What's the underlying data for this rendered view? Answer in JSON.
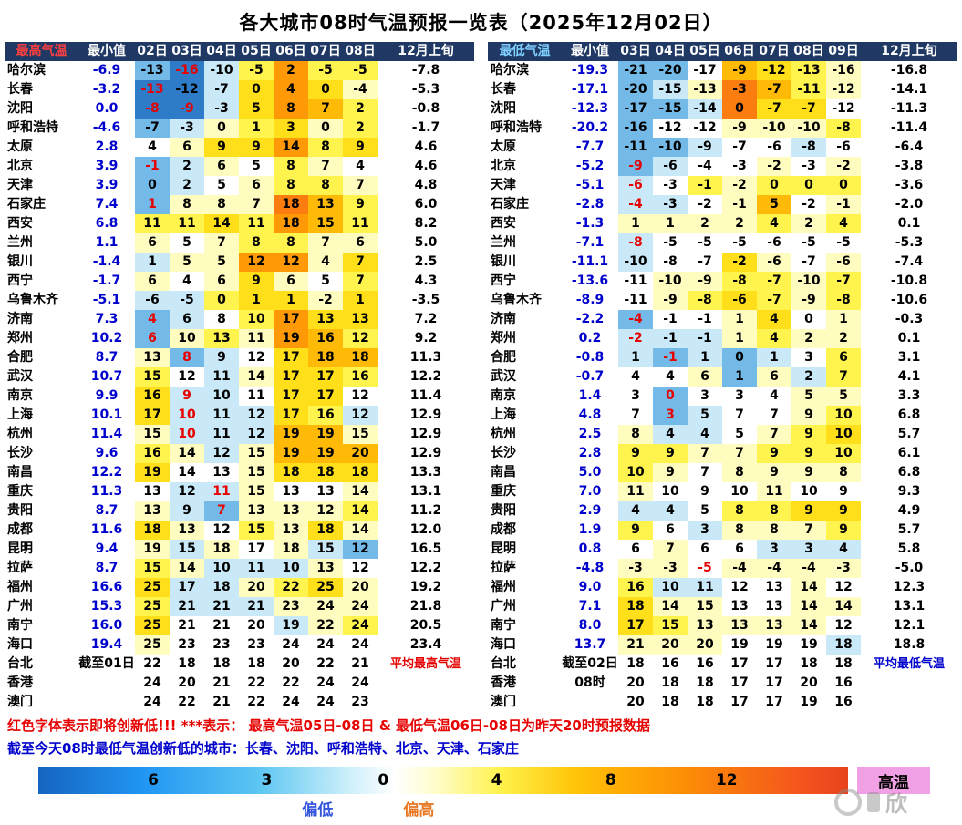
{
  "title": "各大城市08时气温预报一览表（2025年12月02日）",
  "chart_data": [
    {
      "type": "heatmap",
      "title": "最高气温",
      "min_col_label": "最小值",
      "day_columns": [
        "02日",
        "03日",
        "04日",
        "05日",
        "06日",
        "07日",
        "08日"
      ],
      "period_label": "12月上旬",
      "rows": [
        {
          "city": "哈尔滨",
          "min": "-6.9",
          "values": [
            -13,
            -16,
            -10,
            -5,
            2,
            -5,
            -5
          ],
          "avg": "-7.8",
          "red": [
            1
          ]
        },
        {
          "city": "长春",
          "min": "-3.2",
          "values": [
            -13,
            -12,
            -7,
            0,
            4,
            0,
            -4
          ],
          "avg": "-5.3",
          "red": [
            0
          ]
        },
        {
          "city": "沈阳",
          "min": "0.0",
          "values": [
            -8,
            -9,
            -3,
            5,
            8,
            7,
            2
          ],
          "avg": "-0.8",
          "red": [
            0,
            1
          ]
        },
        {
          "city": "呼和浩特",
          "min": "-4.6",
          "values": [
            -7,
            -3,
            0,
            1,
            3,
            0,
            2
          ],
          "avg": "-1.7"
        },
        {
          "city": "太原",
          "min": "2.8",
          "values": [
            4,
            6,
            9,
            9,
            14,
            8,
            9
          ],
          "avg": "4.6"
        },
        {
          "city": "北京",
          "min": "3.9",
          "values": [
            -1,
            2,
            6,
            5,
            8,
            7,
            4
          ],
          "avg": "4.6",
          "red": [
            0
          ]
        },
        {
          "city": "天津",
          "min": "3.9",
          "values": [
            0,
            2,
            5,
            6,
            8,
            8,
            7
          ],
          "avg": "4.8"
        },
        {
          "city": "石家庄",
          "min": "7.4",
          "values": [
            1,
            8,
            8,
            7,
            18,
            13,
            9
          ],
          "avg": "6.0",
          "red": [
            0
          ]
        },
        {
          "city": "西安",
          "min": "6.8",
          "values": [
            11,
            11,
            14,
            11,
            18,
            15,
            11
          ],
          "avg": "8.2"
        },
        {
          "city": "兰州",
          "min": "1.1",
          "values": [
            6,
            5,
            7,
            8,
            8,
            7,
            6
          ],
          "avg": "5.0"
        },
        {
          "city": "银川",
          "min": "-1.4",
          "values": [
            1,
            5,
            5,
            12,
            12,
            4,
            7
          ],
          "avg": "2.5"
        },
        {
          "city": "西宁",
          "min": "-1.7",
          "values": [
            6,
            4,
            6,
            9,
            6,
            5,
            7
          ],
          "avg": "4.3"
        },
        {
          "city": "乌鲁木齐",
          "min": "-5.1",
          "values": [
            -6,
            -5,
            0,
            1,
            1,
            -2,
            1
          ],
          "avg": "-3.5"
        },
        {
          "city": "济南",
          "min": "7.3",
          "values": [
            4,
            6,
            8,
            10,
            17,
            13,
            13
          ],
          "avg": "7.2",
          "red": [
            0
          ]
        },
        {
          "city": "郑州",
          "min": "10.2",
          "values": [
            6,
            10,
            13,
            11,
            19,
            16,
            12
          ],
          "avg": "9.2",
          "red": [
            0
          ]
        },
        {
          "city": "合肥",
          "min": "8.7",
          "values": [
            13,
            8,
            9,
            12,
            17,
            18,
            18
          ],
          "avg": "11.3",
          "red": [
            1
          ]
        },
        {
          "city": "武汉",
          "min": "10.7",
          "values": [
            15,
            12,
            11,
            14,
            17,
            17,
            16
          ],
          "avg": "12.2"
        },
        {
          "city": "南京",
          "min": "9.9",
          "values": [
            16,
            9,
            10,
            11,
            17,
            17,
            12
          ],
          "avg": "11.4",
          "red": [
            1
          ]
        },
        {
          "city": "上海",
          "min": "10.1",
          "values": [
            17,
            10,
            11,
            12,
            17,
            16,
            12
          ],
          "avg": "12.9",
          "red": [
            1
          ]
        },
        {
          "city": "杭州",
          "min": "11.4",
          "values": [
            15,
            10,
            11,
            12,
            19,
            19,
            15
          ],
          "avg": "12.9",
          "red": [
            1
          ]
        },
        {
          "city": "长沙",
          "min": "9.6",
          "values": [
            16,
            14,
            12,
            15,
            19,
            19,
            20
          ],
          "avg": "12.9"
        },
        {
          "city": "南昌",
          "min": "12.2",
          "values": [
            19,
            14,
            13,
            15,
            18,
            18,
            18
          ],
          "avg": "13.3"
        },
        {
          "city": "重庆",
          "min": "11.3",
          "values": [
            13,
            12,
            11,
            15,
            13,
            13,
            14
          ],
          "avg": "13.1",
          "red": [
            2
          ]
        },
        {
          "city": "贵阳",
          "min": "8.7",
          "values": [
            13,
            9,
            7,
            13,
            13,
            12,
            14
          ],
          "avg": "11.2",
          "red": [
            2
          ]
        },
        {
          "city": "成都",
          "min": "11.6",
          "values": [
            18,
            13,
            12,
            15,
            13,
            18,
            14
          ],
          "avg": "12.0"
        },
        {
          "city": "昆明",
          "min": "9.4",
          "values": [
            19,
            15,
            18,
            17,
            18,
            15,
            12
          ],
          "avg": "16.5"
        },
        {
          "city": "拉萨",
          "min": "8.7",
          "values": [
            15,
            14,
            10,
            11,
            10,
            13,
            12
          ],
          "avg": "12.2"
        },
        {
          "city": "福州",
          "min": "16.6",
          "values": [
            25,
            17,
            18,
            20,
            22,
            25,
            20
          ],
          "avg": "19.2"
        },
        {
          "city": "广州",
          "min": "15.3",
          "values": [
            25,
            21,
            21,
            21,
            23,
            24,
            24
          ],
          "avg": "21.8"
        },
        {
          "city": "南宁",
          "min": "16.0",
          "values": [
            25,
            21,
            21,
            20,
            19,
            22,
            24
          ],
          "avg": "20.5"
        },
        {
          "city": "海口",
          "min": "19.4",
          "values": [
            25,
            23,
            23,
            23,
            24,
            24,
            24
          ],
          "avg": "23.4"
        },
        {
          "city": "台北",
          "min": "截至01日",
          "values": [
            22,
            18,
            18,
            18,
            20,
            22,
            21
          ],
          "avg": "平均最高气温",
          "avg_color": "red"
        },
        {
          "city": "香港",
          "min": "",
          "values": [
            24,
            20,
            21,
            22,
            22,
            24,
            24
          ],
          "avg": ""
        },
        {
          "city": "澳门",
          "min": "",
          "values": [
            24,
            22,
            21,
            22,
            24,
            24,
            23
          ],
          "avg": ""
        }
      ]
    },
    {
      "type": "heatmap",
      "title": "最低气温",
      "min_col_label": "最小值",
      "day_columns": [
        "03日",
        "04日",
        "05日",
        "06日",
        "07日",
        "08日",
        "09日"
      ],
      "period_label": "12月上旬",
      "rows": [
        {
          "city": "哈尔滨",
          "min": "-19.3",
          "values": [
            -21,
            -20,
            -17,
            -9,
            -12,
            -13,
            -16
          ],
          "avg": "-16.8"
        },
        {
          "city": "长春",
          "min": "-17.1",
          "values": [
            -20,
            -15,
            -13,
            -3,
            -7,
            -11,
            -12
          ],
          "avg": "-14.1"
        },
        {
          "city": "沈阳",
          "min": "-12.3",
          "values": [
            -17,
            -15,
            -14,
            0,
            -7,
            -7,
            -12
          ],
          "avg": "-11.3"
        },
        {
          "city": "呼和浩特",
          "min": "-20.2",
          "values": [
            -16,
            -12,
            -12,
            -9,
            -10,
            -10,
            -8
          ],
          "avg": "-11.4"
        },
        {
          "city": "太原",
          "min": "-7.7",
          "values": [
            -11,
            -10,
            -9,
            -7,
            -6,
            -8,
            -6
          ],
          "avg": "-6.4"
        },
        {
          "city": "北京",
          "min": "-5.2",
          "values": [
            -9,
            -6,
            -4,
            -3,
            -2,
            -3,
            -2
          ],
          "avg": "-3.8",
          "red": [
            0
          ]
        },
        {
          "city": "天津",
          "min": "-5.1",
          "values": [
            -6,
            -3,
            -1,
            -2,
            0,
            0,
            0
          ],
          "avg": "-3.6",
          "red": [
            0
          ]
        },
        {
          "city": "石家庄",
          "min": "-2.8",
          "values": [
            -4,
            -3,
            -2,
            -1,
            5,
            -2,
            -1
          ],
          "avg": "-2.0",
          "red": [
            0
          ]
        },
        {
          "city": "西安",
          "min": "-1.3",
          "values": [
            1,
            1,
            2,
            2,
            4,
            2,
            4
          ],
          "avg": "0.1"
        },
        {
          "city": "兰州",
          "min": "-7.1",
          "values": [
            -8,
            -5,
            -5,
            -5,
            -6,
            -5,
            -5
          ],
          "avg": "-5.3",
          "red": [
            0
          ]
        },
        {
          "city": "银川",
          "min": "-11.1",
          "values": [
            -10,
            -8,
            -7,
            -2,
            -6,
            -7,
            -6
          ],
          "avg": "-7.4"
        },
        {
          "city": "西宁",
          "min": "-13.6",
          "values": [
            -11,
            -10,
            -9,
            -8,
            -7,
            -10,
            -7
          ],
          "avg": "-10.8"
        },
        {
          "city": "乌鲁木齐",
          "min": "-8.9",
          "values": [
            -11,
            -9,
            -8,
            -6,
            -7,
            -9,
            -8
          ],
          "avg": "-10.6"
        },
        {
          "city": "济南",
          "min": "-2.2",
          "values": [
            -4,
            -1,
            -1,
            1,
            4,
            0,
            1
          ],
          "avg": "-0.3",
          "red": [
            0
          ]
        },
        {
          "city": "郑州",
          "min": "0.2",
          "values": [
            -2,
            -1,
            -1,
            1,
            4,
            2,
            2
          ],
          "avg": "0.1",
          "red": [
            0
          ]
        },
        {
          "city": "合肥",
          "min": "-0.8",
          "values": [
            1,
            -1,
            1,
            0,
            1,
            3,
            6
          ],
          "avg": "3.1",
          "red": [
            1
          ]
        },
        {
          "city": "武汉",
          "min": "-0.7",
          "values": [
            4,
            4,
            6,
            1,
            6,
            2,
            7
          ],
          "avg": "4.1"
        },
        {
          "city": "南京",
          "min": "1.4",
          "values": [
            3,
            0,
            3,
            3,
            4,
            5,
            5
          ],
          "avg": "3.3",
          "red": [
            1
          ]
        },
        {
          "city": "上海",
          "min": "4.8",
          "values": [
            7,
            3,
            5,
            7,
            7,
            9,
            10
          ],
          "avg": "6.8",
          "red": [
            1
          ]
        },
        {
          "city": "杭州",
          "min": "2.5",
          "values": [
            8,
            4,
            4,
            5,
            7,
            9,
            10
          ],
          "avg": "5.7"
        },
        {
          "city": "长沙",
          "min": "2.8",
          "values": [
            9,
            9,
            7,
            7,
            9,
            9,
            10
          ],
          "avg": "6.1"
        },
        {
          "city": "南昌",
          "min": "5.0",
          "values": [
            10,
            9,
            7,
            8,
            9,
            9,
            8
          ],
          "avg": "6.8"
        },
        {
          "city": "重庆",
          "min": "7.0",
          "values": [
            11,
            10,
            9,
            10,
            11,
            10,
            9
          ],
          "avg": "9.3"
        },
        {
          "city": "贵阳",
          "min": "2.9",
          "values": [
            4,
            4,
            5,
            8,
            8,
            9,
            9
          ],
          "avg": "4.9"
        },
        {
          "city": "成都",
          "min": "1.9",
          "values": [
            9,
            6,
            3,
            8,
            8,
            7,
            9
          ],
          "avg": "5.7"
        },
        {
          "city": "昆明",
          "min": "0.8",
          "values": [
            6,
            7,
            6,
            6,
            3,
            3,
            4
          ],
          "avg": "5.8"
        },
        {
          "city": "拉萨",
          "min": "-4.8",
          "values": [
            -3,
            -3,
            -5,
            -4,
            -4,
            -4,
            -3
          ],
          "avg": "-5.0",
          "red": [
            2
          ]
        },
        {
          "city": "福州",
          "min": "9.0",
          "values": [
            16,
            10,
            11,
            12,
            13,
            14,
            12
          ],
          "avg": "12.3"
        },
        {
          "city": "广州",
          "min": "7.1",
          "values": [
            18,
            14,
            15,
            13,
            13,
            14,
            14
          ],
          "avg": "13.1"
        },
        {
          "city": "南宁",
          "min": "8.0",
          "values": [
            17,
            15,
            13,
            13,
            13,
            14,
            12
          ],
          "avg": "12.1"
        },
        {
          "city": "海口",
          "min": "13.7",
          "values": [
            21,
            20,
            20,
            19,
            19,
            19,
            18
          ],
          "avg": "18.8"
        },
        {
          "city": "台北",
          "min": "截至02日",
          "values": [
            18,
            16,
            16,
            17,
            17,
            18,
            18
          ],
          "avg": "平均最低气温",
          "avg_color": "blue"
        },
        {
          "city": "香港",
          "min": "08时",
          "values": [
            20,
            18,
            18,
            17,
            17,
            20,
            16
          ],
          "avg": ""
        },
        {
          "city": "澳门",
          "min": "",
          "values": [
            20,
            18,
            18,
            17,
            17,
            19,
            16
          ],
          "avg": ""
        }
      ]
    }
  ],
  "notes": {
    "red": "红色字体表示即将创新低!!!  ***表示：  最高气温05日-08日 & 最低气温06日-08日为昨天20时预报数据",
    "blue": "截至今天08时最低气温创新低的城市：长春、沈阳、呼和浩特、北京、天津、石家庄"
  },
  "legend": {
    "ticks": [
      {
        "label": "6",
        "pos": 14.2
      },
      {
        "label": "3",
        "pos": 28.2
      },
      {
        "label": "0",
        "pos": 42.6
      },
      {
        "label": "4",
        "pos": 56.6
      },
      {
        "label": "8",
        "pos": 70.7
      },
      {
        "label": "12",
        "pos": 85
      }
    ],
    "low_label": "偏低",
    "high_label": "偏高",
    "hot_label": "高温"
  },
  "watermark": "欣",
  "colors": {
    "header_bg": "#1F3864",
    "max_temp_label": "#FF4040",
    "min_temp_label": "#7ED0FF",
    "min_col_text": "#0000CC",
    "record_red": "#E60000",
    "note_blue": "#0000CC",
    "legend_low": "#3355DD",
    "legend_high": "#E87722",
    "hot_bg": "#F2A0E6",
    "gradient": "linear-gradient(to right,#1565C0 0%,#2196F3 13%,#5BC5F2 27%,#C9EEFA 38%,#FFFFFF 44%,#FFFDCC 49%,#FFF24D 57%,#FFC60A 66%,#FFAF05 71%,#FC8D06 80%,#F4511E 95%,#E8431C 100%)",
    "anomaly_palette": [
      {
        "max": -6,
        "color": "#2E7CC8"
      },
      {
        "max": -3,
        "color": "#74BAE8"
      },
      {
        "max": -0.8,
        "color": "#C9E9F8"
      },
      {
        "max": 0.8,
        "color": "#FFFFFF"
      },
      {
        "max": 2.5,
        "color": "#FFFCC0"
      },
      {
        "max": 4,
        "color": "#FFF34D"
      },
      {
        "max": 6,
        "color": "#FFDF1A"
      },
      {
        "max": 8,
        "color": "#FFBA08"
      },
      {
        "max": 10,
        "color": "#FF9A06"
      },
      {
        "max": 12,
        "color": "#FB7D10"
      },
      {
        "max": 999,
        "color": "#F25A1A"
      }
    ]
  }
}
